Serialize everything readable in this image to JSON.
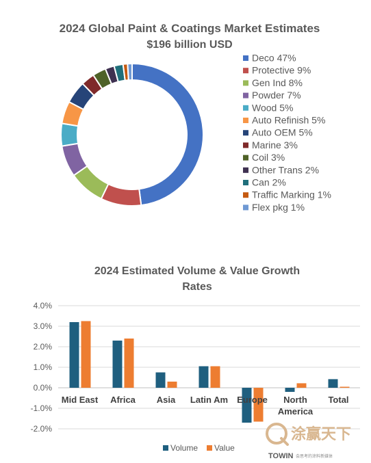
{
  "chart_data": [
    {
      "type": "pie",
      "variant": "donut",
      "title": "2024 Global Paint & Coatings Market Estimates",
      "subtitle": "$196 billion USD",
      "legend_position": "right",
      "slices": [
        {
          "label": "Deco 47%",
          "value": 47,
          "color": "#4472c4"
        },
        {
          "label": "Protective 9%",
          "value": 9,
          "color": "#c0504d"
        },
        {
          "label": "Gen Ind 8%",
          "value": 8,
          "color": "#9bbb59"
        },
        {
          "label": "Powder 7%",
          "value": 7,
          "color": "#8064a2"
        },
        {
          "label": "Wood 5%",
          "value": 5,
          "color": "#4bacc6"
        },
        {
          "label": "Auto Refinish 5%",
          "value": 5,
          "color": "#f79646"
        },
        {
          "label": "Auto OEM 5%",
          "value": 5,
          "color": "#264478"
        },
        {
          "label": "Marine 3%",
          "value": 3,
          "color": "#7f2a2a"
        },
        {
          "label": "Coil 3%",
          "value": 3,
          "color": "#4f6228"
        },
        {
          "label": "Other Trans 2%",
          "value": 2,
          "color": "#3f3151"
        },
        {
          "label": "Can 2%",
          "value": 2,
          "color": "#1f6f7b"
        },
        {
          "label": "Traffic Marking 1%",
          "value": 1,
          "color": "#c55a11"
        },
        {
          "label": "Flex pkg 1%",
          "value": 1,
          "color": "#6f99d3"
        }
      ]
    },
    {
      "type": "bar",
      "title": "2024 Estimated Volume & Value Growth Rates",
      "title_lines": [
        "2024 Estimated Volume & Value Growth",
        "Rates"
      ],
      "categories": [
        "Mid East",
        "Africa",
        "Asia",
        "Latin Am",
        "Europe",
        "North America",
        "Total"
      ],
      "category_lines": [
        [
          "Mid East"
        ],
        [
          "Africa"
        ],
        [
          "Asia"
        ],
        [
          "Latin Am"
        ],
        [
          "Europe"
        ],
        [
          "North",
          "America"
        ],
        [
          "Total"
        ]
      ],
      "series": [
        {
          "name": "Volume",
          "color": "#1f5f7f",
          "values": [
            3.2,
            2.3,
            0.75,
            1.05,
            -1.7,
            -0.2,
            0.42
          ]
        },
        {
          "name": "Value",
          "color": "#ed7d31",
          "values": [
            3.25,
            2.4,
            0.3,
            1.05,
            -1.65,
            0.22,
            0.05
          ]
        }
      ],
      "ylim": [
        -2.0,
        4.0
      ],
      "yticks": [
        4.0,
        3.0,
        2.0,
        1.0,
        0.0,
        -1.0,
        -2.0
      ],
      "ytick_labels": [
        "4.0%",
        "3.0%",
        "2.0%",
        "1.0%",
        "0.0%",
        "-1.0%",
        "-2.0%"
      ],
      "grid": true,
      "legend_position": "bottom"
    }
  ],
  "watermark": {
    "cn_text": "涂赢天下",
    "en_text": "TOWIN",
    "tagline": "会思考的涂料新媒体"
  }
}
